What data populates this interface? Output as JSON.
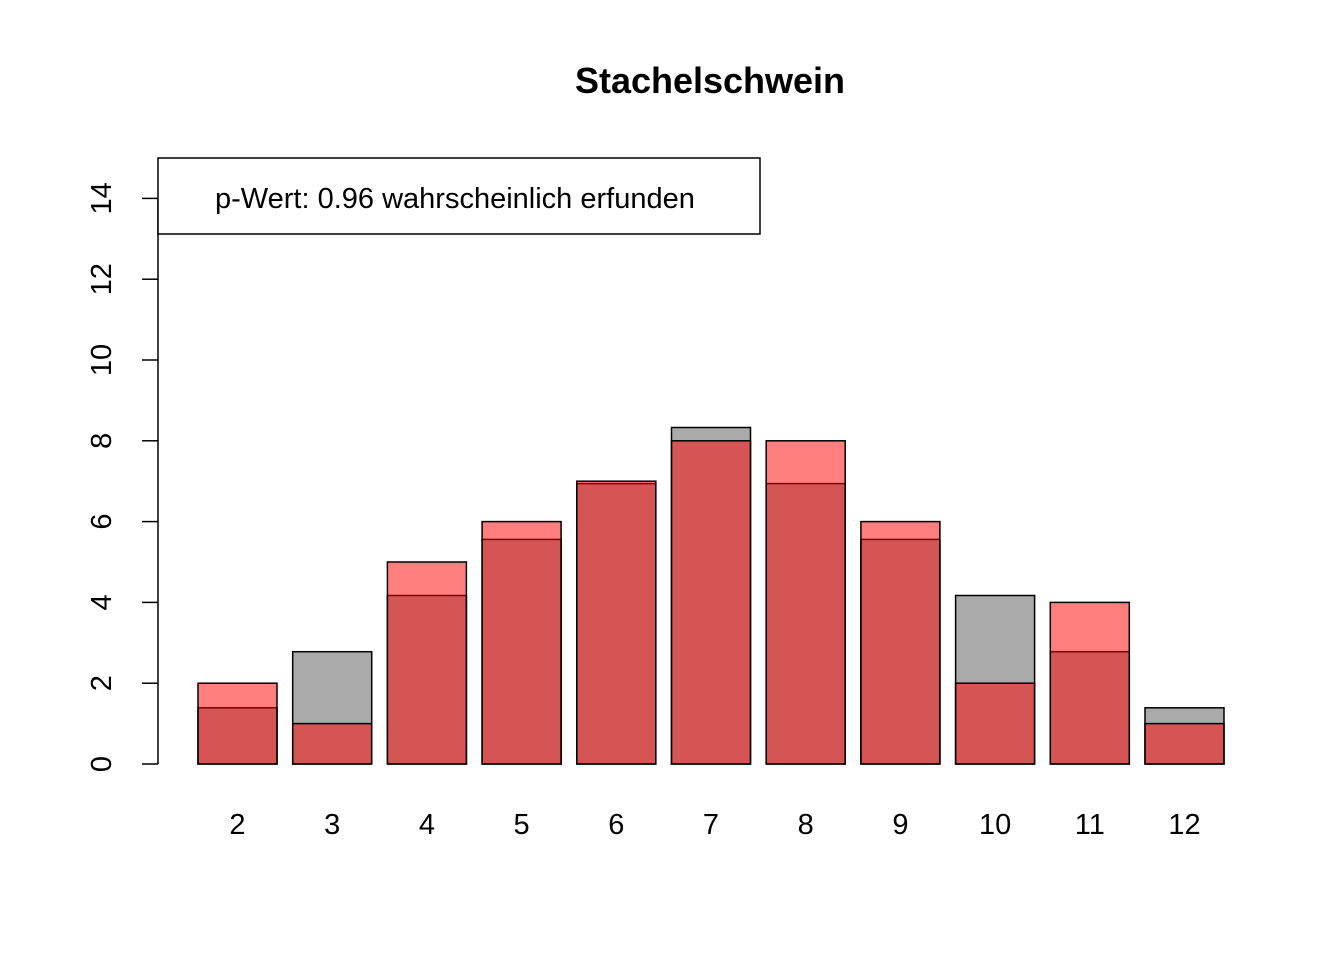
{
  "chart_data": {
    "type": "bar",
    "title": "Stachelschwein",
    "xlabel": "",
    "ylabel": "",
    "categories": [
      "2",
      "3",
      "4",
      "5",
      "6",
      "7",
      "8",
      "9",
      "10",
      "11",
      "12"
    ],
    "series": [
      {
        "values": [
          1.39,
          2.78,
          4.17,
          5.56,
          6.94,
          8.33,
          6.94,
          5.56,
          4.17,
          2.78,
          1.39
        ],
        "color": "#aaaaaa"
      },
      {
        "values": [
          2,
          1,
          5,
          6,
          7,
          8,
          8,
          6,
          2,
          4,
          1
        ],
        "color": "#ff000080"
      }
    ],
    "ylim": [
      0,
      15
    ],
    "yticks": [
      "0",
      "2",
      "4",
      "6",
      "8",
      "10",
      "12",
      "14"
    ],
    "legend": {
      "text": "p-Wert: 0.96 wahrscheinlich erfunden",
      "position": "top-left"
    },
    "grid": false
  }
}
